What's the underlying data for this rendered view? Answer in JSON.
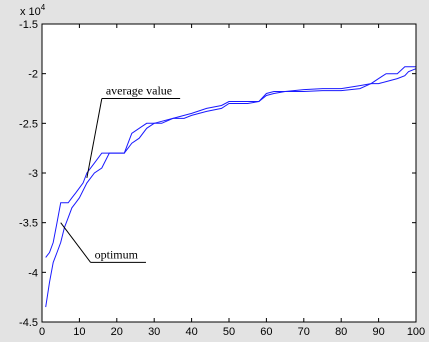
{
  "figure": {
    "background": "#e3e3e3",
    "axes_background": "#ffffff"
  },
  "chart_data": {
    "type": "line",
    "title": "",
    "xlabel": "",
    "ylabel": "",
    "xlim": [
      0,
      100
    ],
    "ylim": [
      -45000,
      -15000
    ],
    "x_ticks": [
      0,
      10,
      20,
      30,
      40,
      50,
      60,
      70,
      80,
      90,
      100
    ],
    "y_ticks": [
      -1.5,
      -2,
      -2.5,
      -3,
      -3.5,
      -4,
      -4.5
    ],
    "y_scale_label": "x 10",
    "y_scale_exponent": "4",
    "grid": false,
    "series_color": "#1a1aff",
    "series": [
      {
        "x": [
          1,
          2,
          3,
          4,
          5,
          6,
          7,
          8,
          9,
          10,
          11,
          12,
          14,
          16,
          18,
          20,
          22,
          24,
          26,
          28,
          30,
          32,
          35,
          38,
          40,
          44,
          48,
          50,
          55,
          58,
          60,
          62,
          65,
          70,
          75,
          80,
          85,
          88,
          90,
          92,
          95,
          97,
          98,
          100
        ],
        "values": [
          -38500,
          -38000,
          -37000,
          -35000,
          -33000,
          -33000,
          -33000,
          -32500,
          -32000,
          -31500,
          -31000,
          -30000,
          -29000,
          -28000,
          -28000,
          -28000,
          -28000,
          -26000,
          -25500,
          -25000,
          -25000,
          -24800,
          -24500,
          -24200,
          -24000,
          -23500,
          -23200,
          -22800,
          -22800,
          -22800,
          -22000,
          -21800,
          -21800,
          -21600,
          -21500,
          -21500,
          -21200,
          -21000,
          -20500,
          -20000,
          -20000,
          -19300,
          -19300,
          -19300
        ]
      },
      {
        "x": [
          1,
          2,
          3,
          4,
          5,
          6,
          7,
          8,
          9,
          10,
          12,
          14,
          16,
          18,
          20,
          22,
          24,
          26,
          28,
          30,
          32,
          35,
          38,
          40,
          44,
          48,
          50,
          55,
          58,
          60,
          62,
          65,
          70,
          75,
          80,
          85,
          88,
          90,
          92,
          95,
          97,
          98,
          100
        ],
        "values": [
          -43500,
          -41000,
          -39000,
          -38000,
          -37000,
          -35500,
          -34500,
          -33500,
          -33000,
          -32500,
          -31000,
          -30000,
          -29500,
          -28000,
          -28000,
          -28000,
          -27000,
          -26500,
          -25500,
          -25000,
          -25000,
          -24500,
          -24500,
          -24200,
          -23800,
          -23500,
          -23000,
          -23000,
          -22800,
          -22200,
          -22000,
          -21800,
          -21800,
          -21700,
          -21700,
          -21500,
          -21000,
          -21000,
          -20800,
          -20500,
          -20200,
          -19800,
          -19500
        ]
      }
    ],
    "annotations": [
      {
        "text": "average value",
        "x": 12,
        "y": -30500,
        "text_x": 16,
        "text_y": -22500
      },
      {
        "text": "optimum",
        "x": 5,
        "y": -35000,
        "text_x": 13,
        "text_y": -39000
      }
    ]
  }
}
